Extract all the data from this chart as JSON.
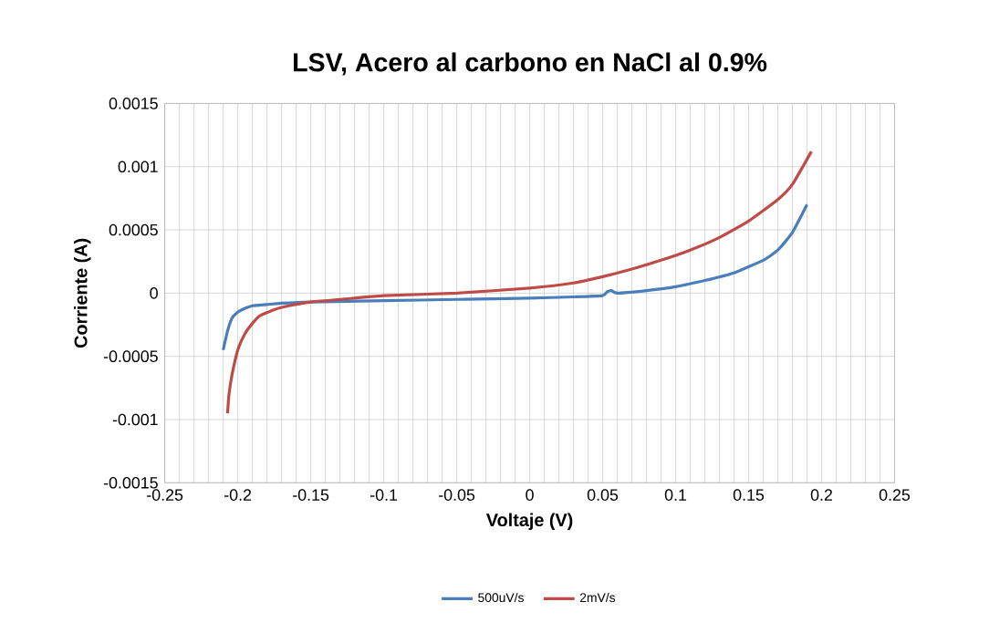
{
  "chart_data": {
    "type": "line",
    "title": "LSV, Acero al carbono en NaCl al 0.9%",
    "xlabel": "Voltaje (V)",
    "ylabel": "Corriente (A)",
    "xlim": [
      -0.25,
      0.25
    ],
    "xticks": [
      -0.25,
      -0.2,
      -0.15,
      -0.1,
      -0.05,
      0,
      0.05,
      0.1,
      0.15,
      0.2,
      0.25
    ],
    "ylim": [
      -0.0015,
      0.0015
    ],
    "yticks": [
      -0.0015,
      -0.001,
      -0.0005,
      0,
      0.0005,
      0.001,
      0.0015
    ],
    "grid": true,
    "legend": "bottom",
    "marker": "none",
    "line_style": "solid",
    "series": [
      {
        "name": "500uV/s",
        "color": "#4a7ebb",
        "x": [
          -0.21,
          -0.207,
          -0.204,
          -0.2,
          -0.195,
          -0.19,
          -0.18,
          -0.17,
          -0.15,
          -0.1,
          -0.05,
          0,
          0.03,
          0.05,
          0.053,
          0.056,
          0.06,
          0.08,
          0.1,
          0.12,
          0.14,
          0.16,
          0.17,
          0.18,
          0.19
        ],
        "values": [
          -0.00045,
          -0.0003,
          -0.0002,
          -0.00015,
          -0.00012,
          -0.0001,
          -9e-05,
          -8e-05,
          -7e-05,
          -6e-05,
          -5e-05,
          -4e-05,
          -3e-05,
          -2e-05,
          1e-05,
          2e-05,
          0.0,
          2e-05,
          5e-05,
          0.0001,
          0.00016,
          0.00026,
          0.00034,
          0.00048,
          0.0007
        ]
      },
      {
        "name": "2mV/s",
        "color": "#be4b48",
        "x": [
          -0.207,
          -0.206,
          -0.204,
          -0.2,
          -0.195,
          -0.19,
          -0.185,
          -0.175,
          -0.165,
          -0.15,
          -0.13,
          -0.1,
          -0.05,
          0,
          0.03,
          0.05,
          0.07,
          0.09,
          0.11,
          0.13,
          0.15,
          0.17,
          0.18,
          0.193
        ],
        "values": [
          -0.00095,
          -0.0008,
          -0.00065,
          -0.00045,
          -0.00032,
          -0.00024,
          -0.00018,
          -0.00013,
          -0.0001,
          -7e-05,
          -5e-05,
          -2e-05,
          0.0,
          4e-05,
          8e-05,
          0.00013,
          0.00019,
          0.00026,
          0.00034,
          0.00044,
          0.00057,
          0.00074,
          0.00086,
          0.00112
        ]
      }
    ]
  }
}
